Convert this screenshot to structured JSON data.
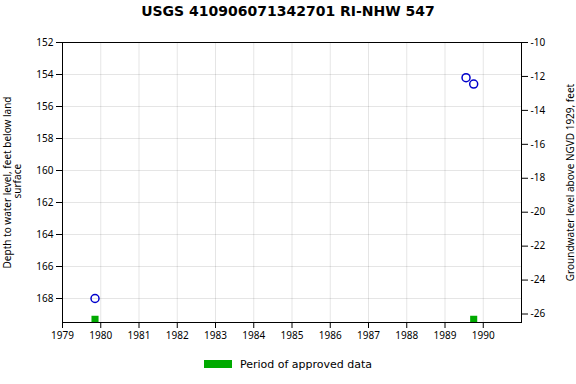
{
  "chart_data": {
    "type": "scatter",
    "title": "USGS 410906071342701 RI-NHW  547",
    "ylabel": "Depth to water level, feet below land\n surface",
    "y2label": "Groundwater level above NGVD 1929, feet",
    "xlim": [
      1979,
      1991
    ],
    "xticks": [
      1979,
      1980,
      1981,
      1982,
      1983,
      1984,
      1985,
      1986,
      1987,
      1988,
      1989,
      1990
    ],
    "ylim": [
      169.5,
      152
    ],
    "yticks": [
      152,
      154,
      156,
      158,
      160,
      162,
      164,
      166,
      168
    ],
    "y2lim": [
      -26.5,
      -10
    ],
    "y2ticks": [
      -10,
      -12,
      -14,
      -16,
      -18,
      -20,
      -22,
      -24,
      -26
    ],
    "grid": true,
    "legend": "bottom",
    "series": [
      {
        "color": "#0000cc",
        "marker": "circle",
        "x": [
          1979.85,
          1989.55,
          1989.75
        ],
        "values": [
          168.0,
          154.2,
          154.6
        ]
      },
      {
        "name": "Period of approved data",
        "color": "#00aa00",
        "marker": "square",
        "x": [
          1979.85,
          1989.75
        ],
        "values": [
          169.3,
          169.3
        ]
      }
    ]
  }
}
